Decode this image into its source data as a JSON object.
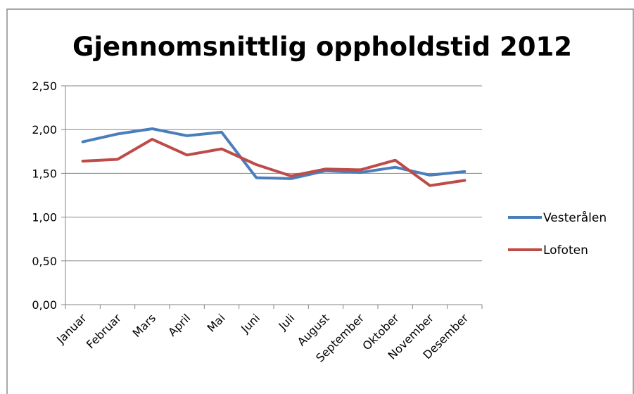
{
  "chart_data": {
    "type": "line",
    "title": "Gjennomsnittlig oppholdstid 2012",
    "xlabel": "",
    "ylabel": "",
    "categories": [
      "Januar",
      "Februar",
      "Mars",
      "April",
      "Mai",
      "Juni",
      "Juli",
      "August",
      "September",
      "Oktober",
      "November",
      "Desember"
    ],
    "series": [
      {
        "name": "Vesterålen",
        "color": "#4a7ebb",
        "values": [
          1.86,
          1.95,
          2.01,
          1.93,
          1.97,
          1.45,
          1.44,
          1.53,
          1.51,
          1.57,
          1.48,
          1.52
        ]
      },
      {
        "name": "Lofoten",
        "color": "#be4b48",
        "values": [
          1.64,
          1.66,
          1.89,
          1.71,
          1.78,
          1.6,
          1.47,
          1.55,
          1.54,
          1.65,
          1.36,
          1.42
        ]
      }
    ],
    "ylim": [
      0,
      2.5
    ],
    "yticks": [
      "0,00",
      "0,50",
      "1,00",
      "1,50",
      "2,00",
      "2,50"
    ],
    "grid": true,
    "legend": "right"
  }
}
